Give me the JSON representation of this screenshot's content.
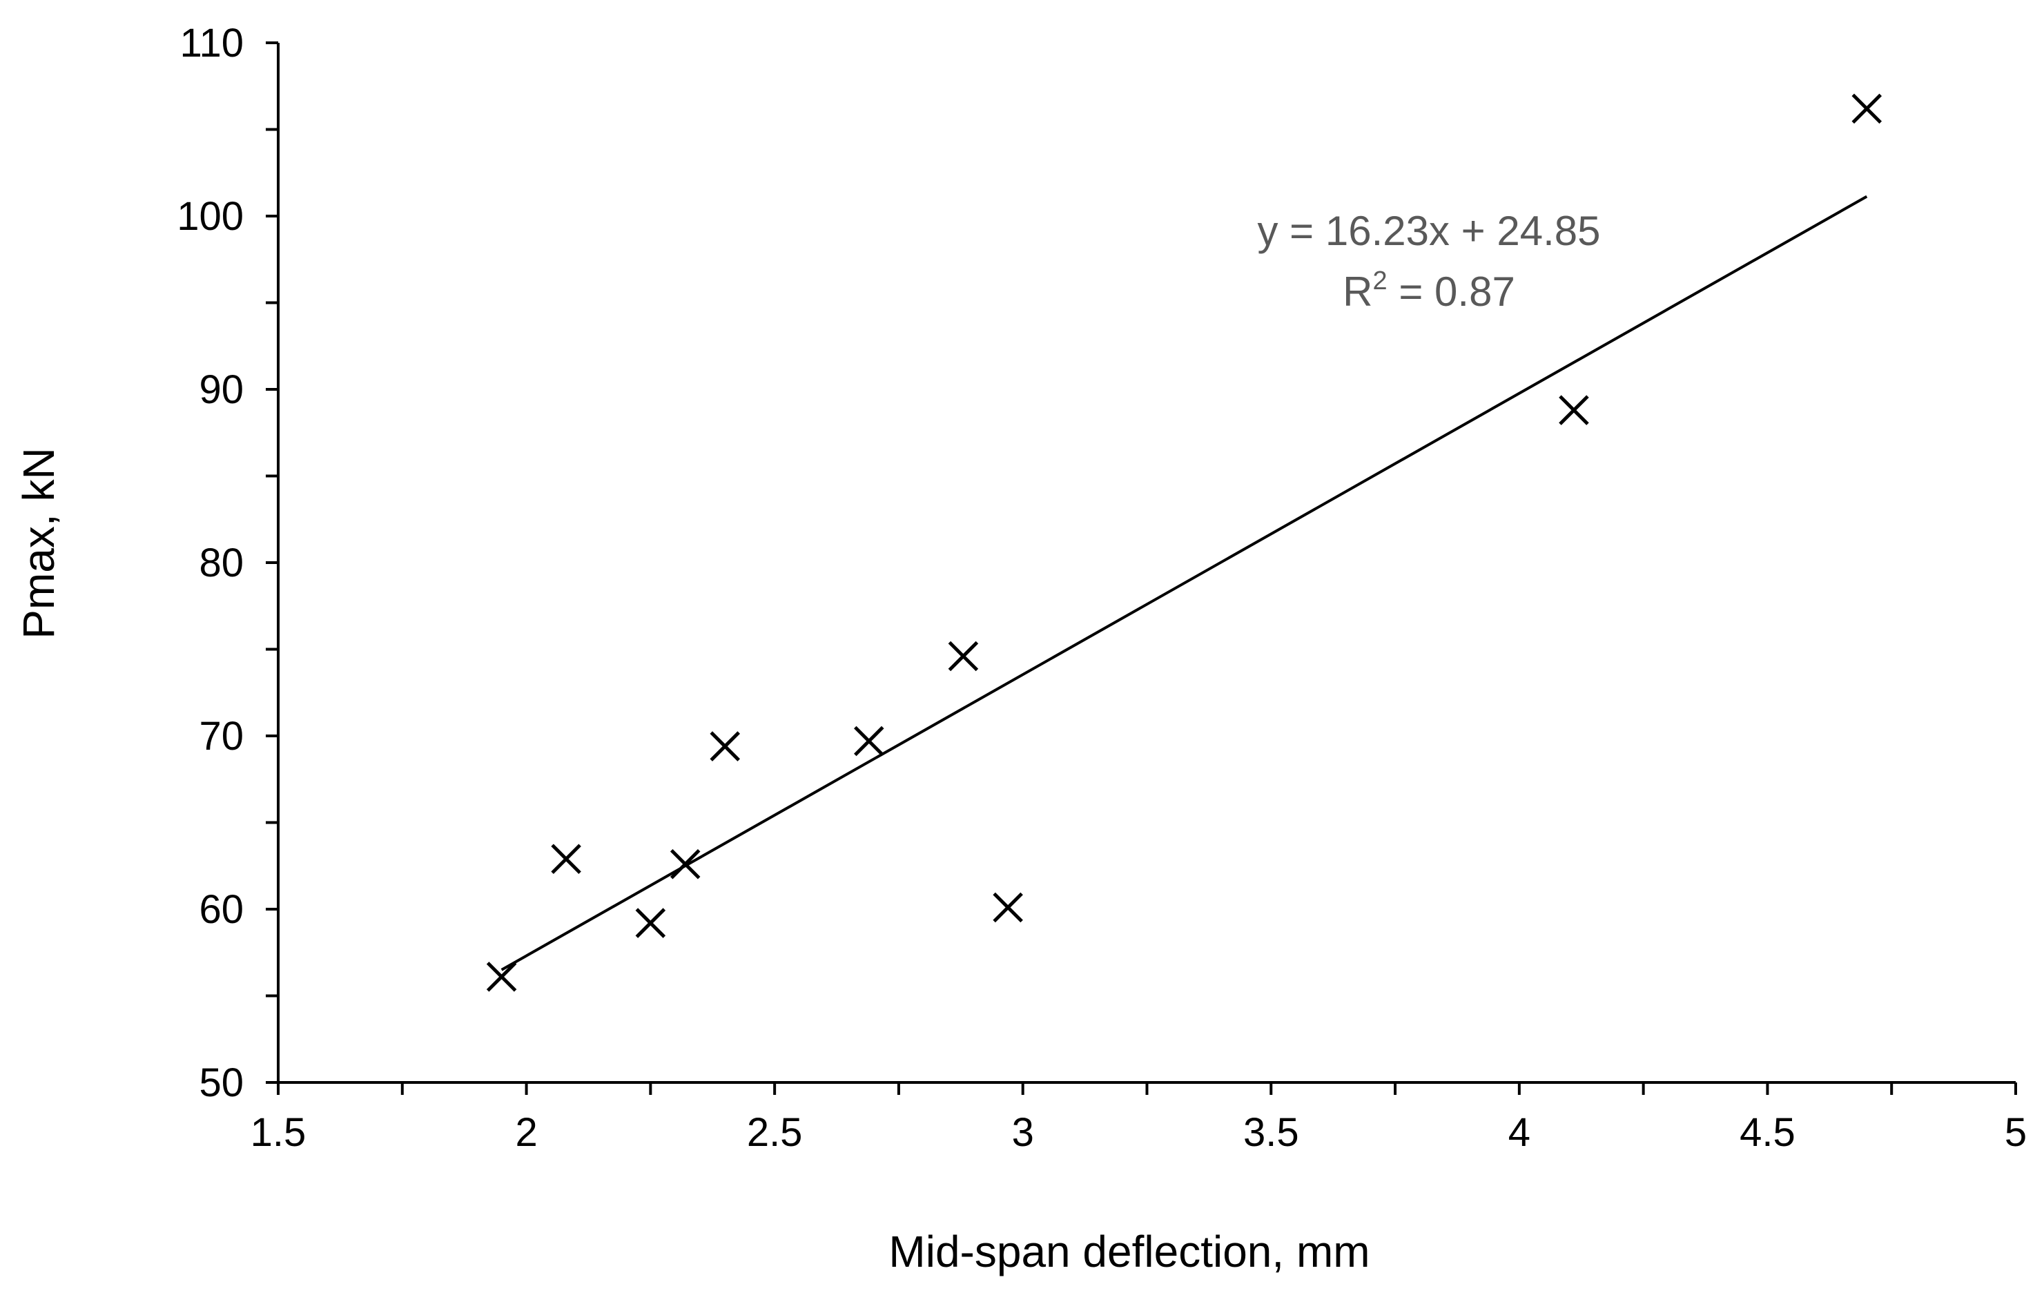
{
  "chart_data": {
    "type": "scatter",
    "xlabel": "Mid-span deflection, mm",
    "ylabel": "Pmax, kN",
    "xlim": [
      1.5,
      5
    ],
    "ylim": [
      50,
      110
    ],
    "x_major_ticks": [
      1.5,
      2,
      2.5,
      3,
      3.5,
      4,
      4.5,
      5
    ],
    "x_tick_labels": [
      "1.5",
      "2",
      "2.5",
      "3",
      "3.5",
      "4",
      "4.5",
      "5"
    ],
    "y_major_ticks": [
      50,
      60,
      70,
      80,
      90,
      100,
      110
    ],
    "y_tick_labels": [
      "50",
      "60",
      "70",
      "80",
      "90",
      "100",
      "110"
    ],
    "grid": false,
    "marker": "x",
    "series": [
      {
        "points": [
          {
            "x": 1.95,
            "y": 56.1
          },
          {
            "x": 2.08,
            "y": 62.9
          },
          {
            "x": 2.25,
            "y": 59.2
          },
          {
            "x": 2.32,
            "y": 62.6
          },
          {
            "x": 2.4,
            "y": 69.4
          },
          {
            "x": 2.69,
            "y": 69.7
          },
          {
            "x": 2.88,
            "y": 74.6
          },
          {
            "x": 2.97,
            "y": 60.1
          },
          {
            "x": 4.11,
            "y": 88.8
          },
          {
            "x": 4.7,
            "y": 106.2
          }
        ]
      }
    ],
    "trendline": {
      "type": "linear",
      "slope": 16.23,
      "intercept": 24.85,
      "x_range": [
        1.95,
        4.7
      ]
    },
    "annotations": {
      "equation": "y = 16.23x + 24.85",
      "r2_prefix": "R",
      "r2_superscript": "2",
      "r2_suffix": " = 0.87"
    },
    "colors": {
      "marker": "#000000",
      "trendline": "#000000",
      "annotation": "#595959",
      "axis": "#000000"
    }
  }
}
